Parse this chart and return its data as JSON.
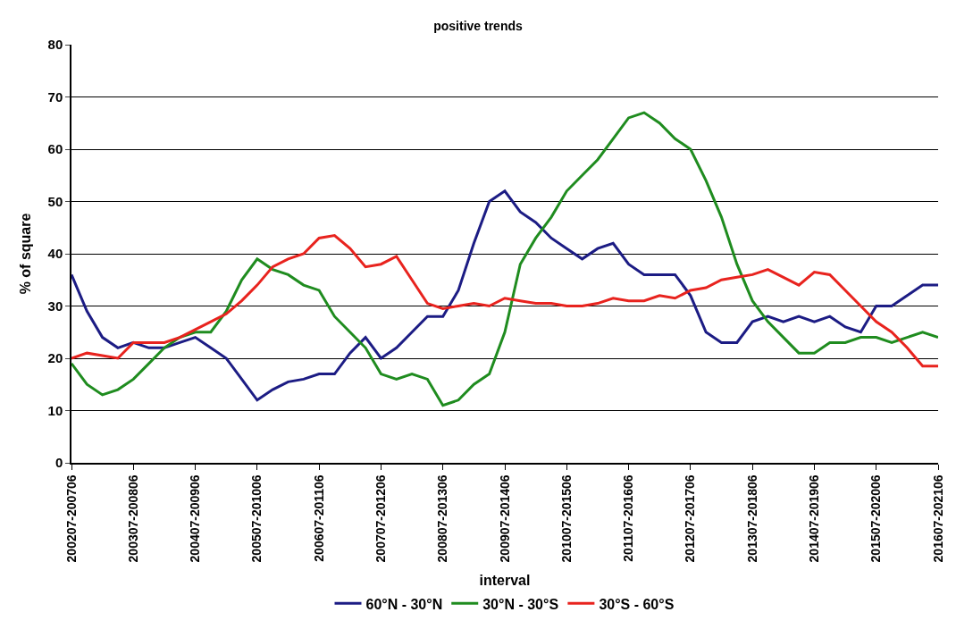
{
  "chart_data": {
    "type": "line",
    "title": "positive trends",
    "xlabel": "interval",
    "ylabel": "% of square",
    "categories": [
      "200207-200706",
      null,
      null,
      null,
      "200307-200806",
      null,
      null,
      null,
      "200407-200906",
      null,
      null,
      null,
      "200507-201006",
      null,
      null,
      null,
      "200607-201106",
      null,
      null,
      null,
      "200707-201206",
      null,
      null,
      null,
      "200807-201306",
      null,
      null,
      null,
      "200907-201406",
      null,
      null,
      null,
      "201007-201506",
      null,
      null,
      null,
      "201107-201606",
      null,
      null,
      null,
      "201207-201706",
      null,
      null,
      null,
      "201307-201806",
      null,
      null,
      null,
      "201407-201906",
      null,
      null,
      null,
      "201507-202006",
      null,
      null,
      null,
      "201607-202106"
    ],
    "series": [
      {
        "name": "60°N - 30°N",
        "color": "#1c1c84",
        "values": [
          36,
          29,
          24,
          22,
          23,
          22,
          22,
          23,
          24,
          22,
          20,
          16,
          12,
          14,
          15.5,
          16,
          17,
          17,
          21,
          24,
          20,
          22,
          25,
          28,
          28,
          33,
          42,
          50,
          52,
          48,
          46,
          43,
          41,
          39,
          41,
          42,
          38,
          36,
          36,
          36,
          32,
          25,
          23,
          23,
          27,
          28,
          27,
          28,
          27,
          28,
          26,
          25,
          30,
          30,
          32,
          34,
          34
        ]
      },
      {
        "name": "30°N - 30°S",
        "color": "#1f8c1f",
        "values": [
          19,
          15,
          13,
          14,
          16,
          19,
          22,
          24,
          25,
          25,
          29,
          35,
          39,
          37,
          36,
          34,
          33,
          28,
          25,
          22,
          17,
          16,
          17,
          16,
          11,
          12,
          15,
          17,
          25,
          38,
          43,
          47,
          52,
          55,
          58,
          62,
          66,
          67,
          65,
          62,
          60,
          54,
          47,
          38,
          31,
          27,
          24,
          21,
          21,
          23,
          23,
          24,
          24,
          23,
          24,
          25,
          24
        ]
      },
      {
        "name": "30°S - 60°S",
        "color": "#e8231e",
        "values": [
          20,
          21,
          20.5,
          20,
          23,
          23,
          23,
          24,
          25.5,
          27,
          28.5,
          31,
          34,
          37.5,
          39,
          40,
          43,
          43.5,
          41,
          37.5,
          38,
          39.5,
          35,
          30.5,
          29.5,
          30,
          30.5,
          30,
          31.5,
          31,
          30.5,
          30.5,
          30,
          30,
          30.5,
          31.5,
          31,
          31,
          32,
          31.5,
          33,
          33.5,
          35,
          35.5,
          36,
          37,
          35.5,
          34,
          36.5,
          36,
          33,
          30,
          27,
          25,
          22,
          18.5,
          18.5
        ]
      }
    ],
    "ylim": [
      0,
      80
    ],
    "yticks": [
      0,
      10,
      20,
      30,
      40,
      50,
      60,
      70,
      80
    ],
    "grid": "y",
    "legend": "bottom",
    "marker": "none",
    "line_style": "solid"
  }
}
